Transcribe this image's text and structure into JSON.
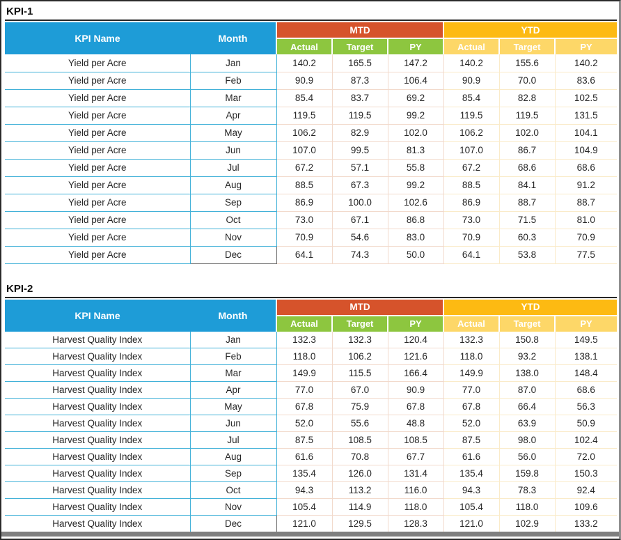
{
  "palette": {
    "blue": "#1E9CD7",
    "red": "#D6532B",
    "green": "#8DC63F",
    "gold": "#FDBA12",
    "light_gold": "#FDD768",
    "cyan_border": "#41B1D8"
  },
  "columns": {
    "kpi_name": "KPI Name",
    "month": "Month",
    "mtd": "MTD",
    "ytd": "YTD",
    "sub": [
      "Actual",
      "Target",
      "PY"
    ]
  },
  "sections": [
    {
      "title": "KPI-1",
      "kpi_name": "Yield per Acre",
      "rows": [
        [
          "Yield per Acre",
          "Jan",
          "140.2",
          "165.5",
          "147.2",
          "140.2",
          "155.6",
          "140.2"
        ],
        [
          "Yield per Acre",
          "Feb",
          "90.9",
          "87.3",
          "106.4",
          "90.9",
          "70.0",
          "83.6"
        ],
        [
          "Yield per Acre",
          "Mar",
          "85.4",
          "83.7",
          "69.2",
          "85.4",
          "82.8",
          "102.5"
        ],
        [
          "Yield per Acre",
          "Apr",
          "119.5",
          "119.5",
          "99.2",
          "119.5",
          "119.5",
          "131.5"
        ],
        [
          "Yield per Acre",
          "May",
          "106.2",
          "82.9",
          "102.0",
          "106.2",
          "102.0",
          "104.1"
        ],
        [
          "Yield per Acre",
          "Jun",
          "107.0",
          "99.5",
          "81.3",
          "107.0",
          "86.7",
          "104.9"
        ],
        [
          "Yield per Acre",
          "Jul",
          "67.2",
          "57.1",
          "55.8",
          "67.2",
          "68.6",
          "68.6"
        ],
        [
          "Yield per Acre",
          "Aug",
          "88.5",
          "67.3",
          "99.2",
          "88.5",
          "84.1",
          "91.2"
        ],
        [
          "Yield per Acre",
          "Sep",
          "86.9",
          "100.0",
          "102.6",
          "86.9",
          "88.7",
          "88.7"
        ],
        [
          "Yield per Acre",
          "Oct",
          "73.0",
          "67.1",
          "86.8",
          "73.0",
          "71.5",
          "81.0"
        ],
        [
          "Yield per Acre",
          "Nov",
          "70.9",
          "54.6",
          "83.0",
          "70.9",
          "60.3",
          "70.9"
        ],
        [
          "Yield per Acre",
          "Dec",
          "64.1",
          "74.3",
          "50.0",
          "64.1",
          "53.8",
          "77.5"
        ]
      ]
    },
    {
      "title": "KPI-2",
      "kpi_name": "Harvest Quality Index",
      "rows": [
        [
          "Harvest Quality Index",
          "Jan",
          "132.3",
          "132.3",
          "120.4",
          "132.3",
          "150.8",
          "149.5"
        ],
        [
          "Harvest Quality Index",
          "Feb",
          "118.0",
          "106.2",
          "121.6",
          "118.0",
          "93.2",
          "138.1"
        ],
        [
          "Harvest Quality Index",
          "Mar",
          "149.9",
          "115.5",
          "166.4",
          "149.9",
          "138.0",
          "148.4"
        ],
        [
          "Harvest Quality Index",
          "Apr",
          "77.0",
          "67.0",
          "90.9",
          "77.0",
          "87.0",
          "68.6"
        ],
        [
          "Harvest Quality Index",
          "May",
          "67.8",
          "75.9",
          "67.8",
          "67.8",
          "66.4",
          "56.3"
        ],
        [
          "Harvest Quality Index",
          "Jun",
          "52.0",
          "55.6",
          "48.8",
          "52.0",
          "63.9",
          "50.9"
        ],
        [
          "Harvest Quality Index",
          "Jul",
          "87.5",
          "108.5",
          "108.5",
          "87.5",
          "98.0",
          "102.4"
        ],
        [
          "Harvest Quality Index",
          "Aug",
          "61.6",
          "70.8",
          "67.7",
          "61.6",
          "56.0",
          "72.0"
        ],
        [
          "Harvest Quality Index",
          "Sep",
          "135.4",
          "126.0",
          "131.4",
          "135.4",
          "159.8",
          "150.3"
        ],
        [
          "Harvest Quality Index",
          "Oct",
          "94.3",
          "113.2",
          "116.0",
          "94.3",
          "78.3",
          "92.4"
        ],
        [
          "Harvest Quality Index",
          "Nov",
          "105.4",
          "114.9",
          "118.0",
          "105.4",
          "118.0",
          "109.6"
        ],
        [
          "Harvest Quality Index",
          "Dec",
          "121.0",
          "129.5",
          "128.3",
          "121.0",
          "102.9",
          "133.2"
        ]
      ]
    }
  ]
}
